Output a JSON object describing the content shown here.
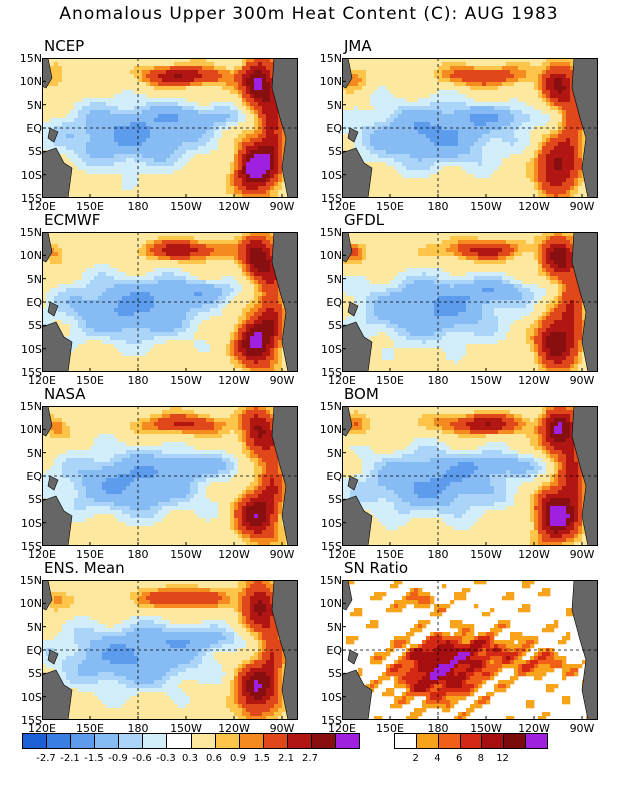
{
  "title": "Anomalous Upper 300m Heat Content (C): AUG 1983",
  "lat_labels": [
    "15N",
    "10N",
    "5N",
    "EQ",
    "5S",
    "10S",
    "15S"
  ],
  "lon_labels": [
    "120E",
    "150E",
    "180",
    "150W",
    "120W",
    "90W"
  ],
  "panels": [
    {
      "name": "NCEP",
      "kind": "anom",
      "warm": 1.25
    },
    {
      "name": "JMA",
      "kind": "anom",
      "warm": 0.9
    },
    {
      "name": "ECMWF",
      "kind": "anom",
      "warm": 1.1
    },
    {
      "name": "GFDL",
      "kind": "anom",
      "warm": 1.0
    },
    {
      "name": "NASA",
      "kind": "anom",
      "warm": 0.95
    },
    {
      "name": "BOM",
      "kind": "anom",
      "warm": 1.2
    },
    {
      "name": "ENS. Mean",
      "kind": "anom",
      "warm": 1.0
    },
    {
      "name": "SN Ratio",
      "kind": "sn",
      "warm": 1.0
    }
  ],
  "anom_colorbar": {
    "colors": [
      "#1f5fd6",
      "#3a7de3",
      "#5d9cec",
      "#86bbf3",
      "#aad4f8",
      "#d3eefb",
      "#ffffff",
      "#fde8a0",
      "#fdc54a",
      "#f58a1f",
      "#e0471b",
      "#b21613",
      "#870f0f",
      "#a020e0"
    ],
    "labels": [
      "-2.7",
      "-2.1",
      "-1.5",
      "-0.9",
      "-0.6",
      "-0.3",
      "0.3",
      "0.6",
      "0.9",
      "1.5",
      "2.1",
      "2.7"
    ]
  },
  "sn_colorbar": {
    "colors": [
      "#ffffff",
      "#f8a31c",
      "#f06018",
      "#d22814",
      "#a50f10",
      "#7c0a0a",
      "#a020e0"
    ],
    "labels": [
      "2",
      "4",
      "6",
      "8",
      "12"
    ]
  }
}
